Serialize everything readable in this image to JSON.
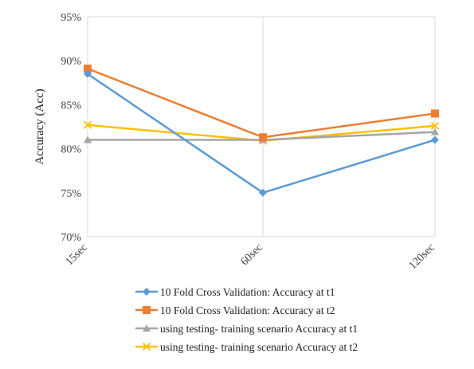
{
  "chart_data": {
    "type": "line",
    "title": "",
    "xlabel": "",
    "ylabel": "Accuracy (Acc)",
    "categories": [
      "15sec",
      "60sec",
      "120sec"
    ],
    "ylim": [
      70,
      95
    ],
    "yticks": [
      70,
      75,
      80,
      85,
      90,
      95
    ],
    "ytick_labels": [
      "70%",
      "75%",
      "80%",
      "85%",
      "90%",
      "95%"
    ],
    "grid": "vertical",
    "legend_position": "bottom",
    "series": [
      {
        "name": "10 Fold Cross Validation: Accuracy at t1",
        "values": [
          88.5,
          75.0,
          81.0
        ],
        "color": "#5B9BD5",
        "marker": "diamond"
      },
      {
        "name": "10 Fold Cross Validation: Accuracy at t2",
        "values": [
          89.1,
          81.3,
          84.0
        ],
        "color": "#ED7D31",
        "marker": "square"
      },
      {
        "name": "using testing- training scenario Accuracy at t1",
        "values": [
          81.0,
          81.0,
          81.9
        ],
        "color": "#A5A5A5",
        "marker": "triangle"
      },
      {
        "name": "using testing- training scenario Accuracy at t2",
        "values": [
          82.7,
          80.9,
          82.6
        ],
        "color": "#FFC000",
        "marker": "x"
      }
    ]
  }
}
